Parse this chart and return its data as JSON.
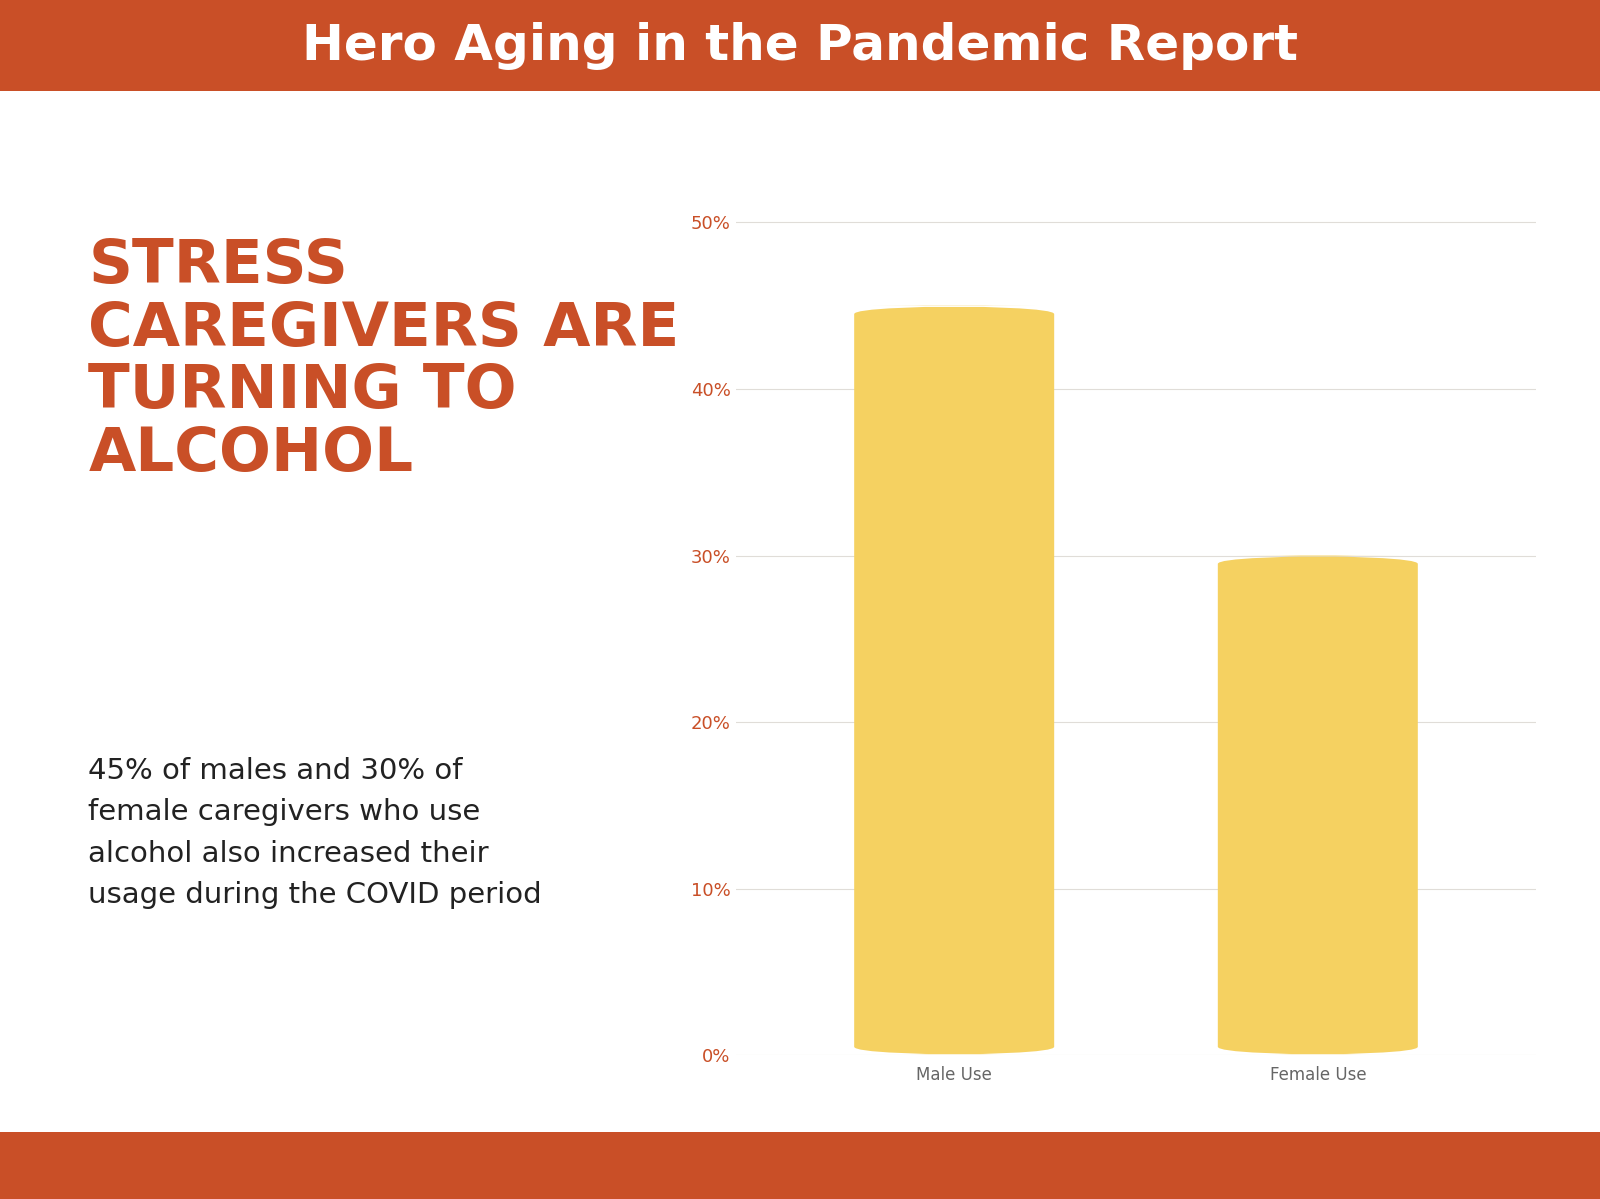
{
  "title": "Hero Aging in the Pandemic Report",
  "title_bg_color": "#c94f27",
  "title_text_color": "#ffffff",
  "main_bg_color": "#ffffff",
  "footer_bg_color": "#c94f27",
  "left_heading_line1": "STRESS",
  "left_heading_line2": "CAREGIVERS ARE",
  "left_heading_line3": "TURNING TO",
  "left_heading_line4": "ALCOHOL",
  "left_heading_color": "#c94f27",
  "left_body_text": "45% of males and 30% of\nfemale caregivers who use\nalcohol also increased their\nusage during the COVID period",
  "left_body_color": "#222222",
  "categories": [
    "Male Use",
    "Female Use"
  ],
  "values": [
    45,
    30
  ],
  "bar_color": "#f5d161",
  "tick_label_color": "#c94f27",
  "xtick_label_color": "#666666",
  "grid_color": "#e0ddd8",
  "ytick_labels": [
    "0%",
    "10%",
    "20%",
    "30%",
    "40%",
    "50%"
  ],
  "ytick_values": [
    0,
    10,
    20,
    30,
    40,
    50
  ],
  "ylim": [
    0,
    54
  ],
  "bar_width": 0.55,
  "tick_fontsize": 13,
  "xtick_fontsize": 12
}
